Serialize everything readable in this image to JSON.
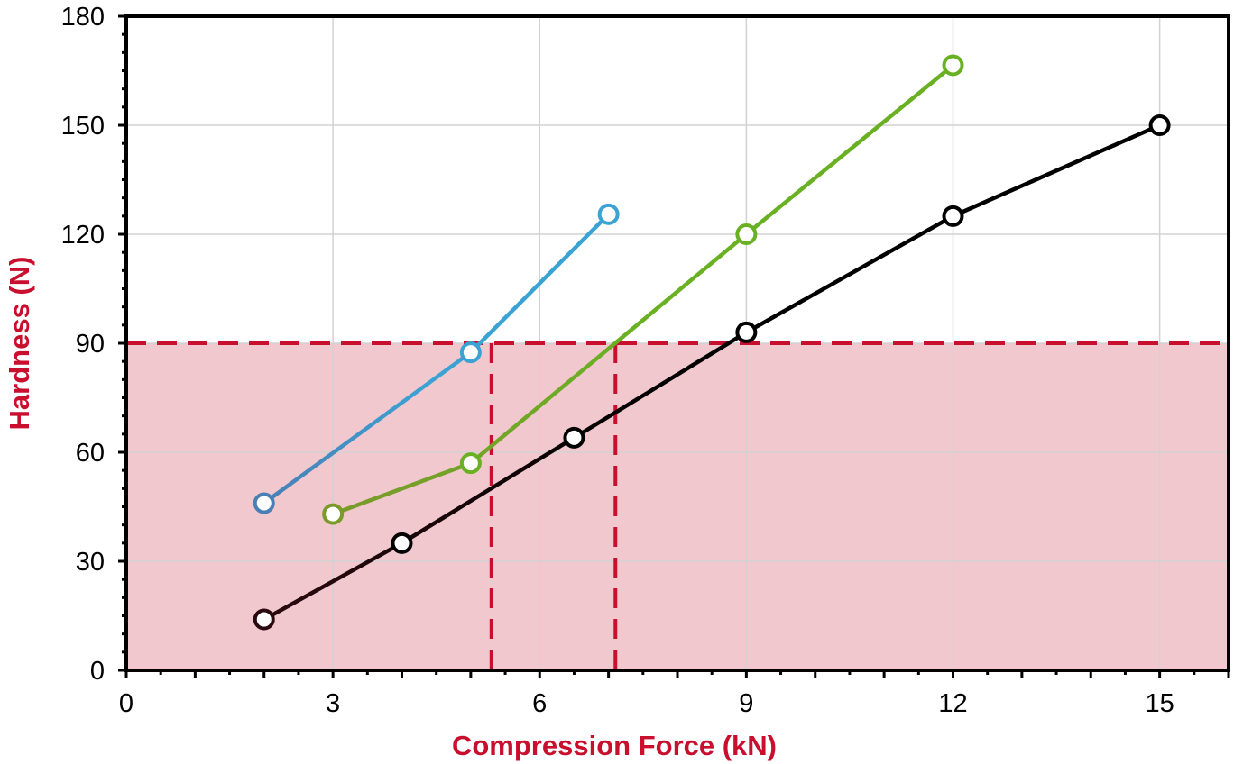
{
  "chart_data": {
    "type": "line",
    "xlabel": "Compression Force (kN)",
    "ylabel": "Hardness (N)",
    "xlim": [
      0,
      16
    ],
    "ylim": [
      0,
      180
    ],
    "x_ticks": [
      "0",
      "3",
      "6",
      "9",
      "12",
      "15"
    ],
    "y_ticks": [
      "0",
      "30",
      "60",
      "90",
      "120",
      "150",
      "180"
    ],
    "grid": true,
    "series": [
      {
        "color": "#3ba3d4",
        "color_start": "#4a7fb5",
        "points": [
          [
            2,
            46
          ],
          [
            5,
            87.5
          ],
          [
            7,
            125.5
          ]
        ]
      },
      {
        "color": "#6ab023",
        "color_start": "#7a9a2a",
        "points": [
          [
            3,
            43
          ],
          [
            5,
            57
          ],
          [
            9,
            120
          ],
          [
            12,
            166.5
          ]
        ]
      },
      {
        "color": "#000000",
        "color_start": "#2a0a10",
        "points": [
          [
            2,
            14
          ],
          [
            4,
            35
          ],
          [
            6.5,
            64
          ],
          [
            9,
            93
          ],
          [
            12,
            125
          ],
          [
            15,
            150
          ]
        ]
      }
    ],
    "threshold": {
      "y": 90,
      "x_markers": [
        5.3,
        7.1
      ],
      "region_color": "#f2c8cf",
      "line_color": "#c8102e"
    },
    "label_color": "#c8102e"
  }
}
